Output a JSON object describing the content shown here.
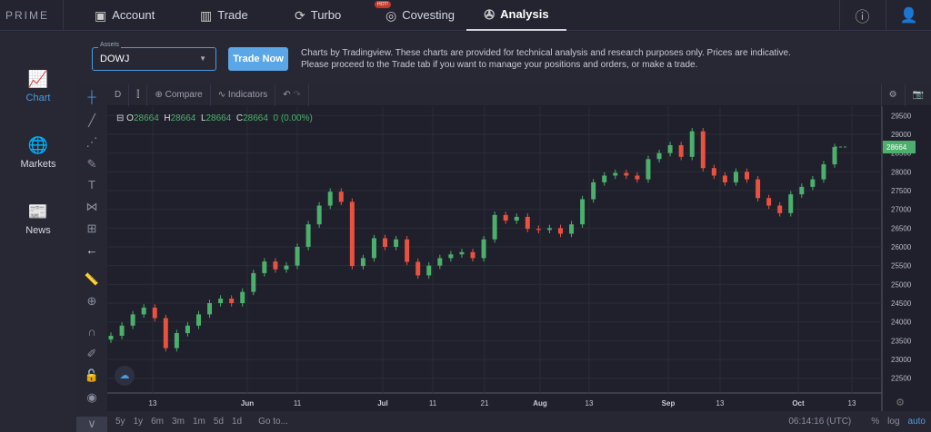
{
  "nav": {
    "logo": "PRIME XBT",
    "tabs": [
      {
        "label": "Account",
        "icon": "wallet-icon"
      },
      {
        "label": "Trade",
        "icon": "bar-chart-icon"
      },
      {
        "label": "Turbo",
        "icon": "turbo-icon"
      },
      {
        "label": "Covesting",
        "icon": "covesting-icon",
        "badge": "HOT!"
      },
      {
        "label": "Analysis",
        "icon": "analysis-icon",
        "active": true
      }
    ],
    "help_icon": "help-icon",
    "user_icon": "user-icon"
  },
  "sidebar": {
    "items": [
      {
        "label": "Chart",
        "icon": "chart-line-icon",
        "active": true
      },
      {
        "label": "Markets",
        "icon": "globe-icon"
      },
      {
        "label": "News",
        "icon": "newspaper-icon"
      }
    ]
  },
  "topbar": {
    "assets_label": "Assets",
    "asset_value": "DOWJ",
    "trade_now": "Trade Now",
    "disclaimer": "Charts by Tradingview. These charts are provided for technical analysis and research purposes only. Prices are indicative. Please proceed to the Trade tab if you want to manage your positions and orders, or make a trade."
  },
  "chart_toolbar": {
    "interval": "D",
    "compare": "Compare",
    "indicators": "Indicators"
  },
  "legend": {
    "o_label": "O",
    "o": "28664",
    "h_label": "H",
    "h": "28664",
    "l_label": "L",
    "l": "28664",
    "c_label": "C",
    "c": "28664",
    "change": "0 (0.00%)"
  },
  "bottom": {
    "ranges": [
      "5y",
      "1y",
      "6m",
      "3m",
      "1m",
      "5d",
      "1d"
    ],
    "goto": "Go to...",
    "time": "06:14:16 (UTC)",
    "pct": "%",
    "log": "log",
    "auto": "auto"
  },
  "colors": {
    "up": "#4caf6c",
    "down": "#e8523f",
    "accent": "#5ba6e6",
    "bg": "#1f202b"
  },
  "chart_data": {
    "type": "candlestick",
    "ylim": [
      22250,
      29750
    ],
    "y_ticks": [
      22500,
      23000,
      23500,
      24000,
      24500,
      25000,
      25500,
      26000,
      26500,
      27000,
      27500,
      28000,
      28500,
      29000,
      29500
    ],
    "x_ticks": [
      "13",
      "Jun",
      "11",
      "Jul",
      "11",
      "21",
      "Aug",
      "13",
      "Sep",
      "13",
      "Oct",
      "13"
    ],
    "last_price": "28664",
    "closes": [
      23630,
      23900,
      24200,
      24380,
      24100,
      23300,
      23700,
      23900,
      24200,
      24500,
      24620,
      24500,
      24800,
      25300,
      25610,
      25400,
      25500,
      26000,
      26600,
      27100,
      27470,
      27200,
      25490,
      25700,
      26230,
      26000,
      26200,
      25600,
      25240,
      25500,
      25700,
      25800,
      25860,
      25700,
      26200,
      26850,
      26700,
      26800,
      26480,
      26450,
      26500,
      26350,
      26600,
      27270,
      27720,
      27900,
      27970,
      27900,
      27800,
      28340,
      28500,
      28710,
      28400,
      29080,
      28100,
      27900,
      27720,
      28000,
      27800,
      27300,
      27100,
      26900,
      27400,
      27600,
      27800,
      28200,
      28660
    ]
  }
}
